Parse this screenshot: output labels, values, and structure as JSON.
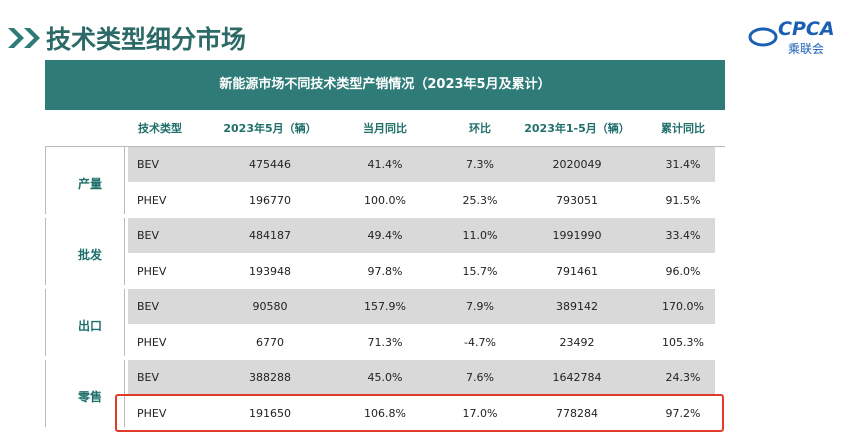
{
  "header": {
    "title": "技术类型细分市场"
  },
  "logo": {
    "mark": "CPCA",
    "name": "乘联会"
  },
  "table": {
    "title": "新能源市场不同技术类型产销情况（2023年5月及累计）",
    "columns": [
      "技术类型",
      "2023年5月（辆）",
      "当月同比",
      "环比",
      "2023年1-5月（辆）",
      "累计同比"
    ],
    "groups": [
      {
        "label": "产量",
        "rows": [
          [
            "BEV",
            "475446",
            "41.4%",
            "7.3%",
            "2020049",
            "31.4%"
          ],
          [
            "PHEV",
            "196770",
            "100.0%",
            "25.3%",
            "793051",
            "91.5%"
          ]
        ]
      },
      {
        "label": "批发",
        "rows": [
          [
            "BEV",
            "484187",
            "49.4%",
            "11.0%",
            "1991990",
            "33.4%"
          ],
          [
            "PHEV",
            "193948",
            "97.8%",
            "15.7%",
            "791461",
            "96.0%"
          ]
        ]
      },
      {
        "label": "出口",
        "rows": [
          [
            "BEV",
            "90580",
            "157.9%",
            "7.9%",
            "389142",
            "170.0%"
          ],
          [
            "PHEV",
            "6770",
            "71.3%",
            "-4.7%",
            "23492",
            "105.3%"
          ]
        ]
      },
      {
        "label": "零售",
        "rows": [
          [
            "BEV",
            "388288",
            "45.0%",
            "7.6%",
            "1642784",
            "24.3%"
          ],
          [
            "PHEV",
            "191650",
            "106.8%",
            "17.0%",
            "778284",
            "97.2%"
          ]
        ]
      }
    ]
  }
}
